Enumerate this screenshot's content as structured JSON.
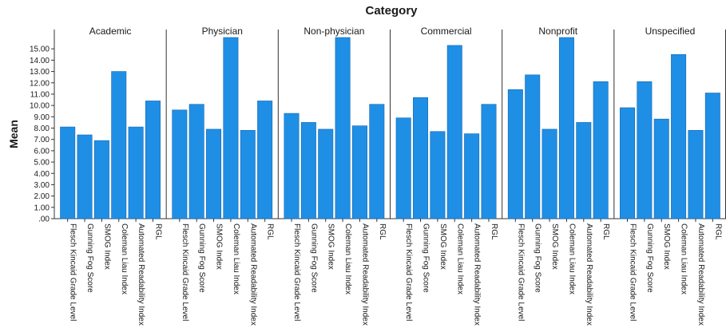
{
  "chart_data": {
    "type": "bar",
    "title": "Category",
    "ylabel": "Mean",
    "ylim": [
      0,
      16
    ],
    "yticks": [
      ".00",
      "1.00",
      "2.00",
      "3.00",
      "4.00",
      "5.00",
      "6.00",
      "7.00",
      "8.00",
      "9.00",
      "10.00",
      "11.00",
      "12.00",
      "13.00",
      "14.00",
      "15.00"
    ],
    "categories": [
      "Flesch Kincaid Grade Level",
      "Gunning Fog Score",
      "SMOG Index",
      "Coleman Liau Index",
      "Automated Readability Index",
      "RGL"
    ],
    "bar_color": "#1f8fe6",
    "bar_edge_color": "#1566b0",
    "grid": false,
    "panels": [
      {
        "name": "Academic",
        "values": [
          8.1,
          7.4,
          6.9,
          13.0,
          8.1,
          10.4
        ]
      },
      {
        "name": "Physician",
        "values": [
          9.6,
          10.1,
          7.9,
          16.0,
          7.8,
          10.4
        ]
      },
      {
        "name": "Non-physician",
        "values": [
          9.3,
          8.5,
          7.9,
          16.0,
          8.2,
          10.1
        ]
      },
      {
        "name": "Commercial",
        "values": [
          8.9,
          10.7,
          7.7,
          15.3,
          7.5,
          10.1
        ]
      },
      {
        "name": "Nonprofit",
        "values": [
          11.4,
          12.7,
          7.9,
          16.0,
          8.5,
          12.1
        ]
      },
      {
        "name": "Unspecified",
        "values": [
          9.8,
          12.1,
          8.8,
          14.5,
          7.8,
          11.1
        ]
      }
    ]
  }
}
